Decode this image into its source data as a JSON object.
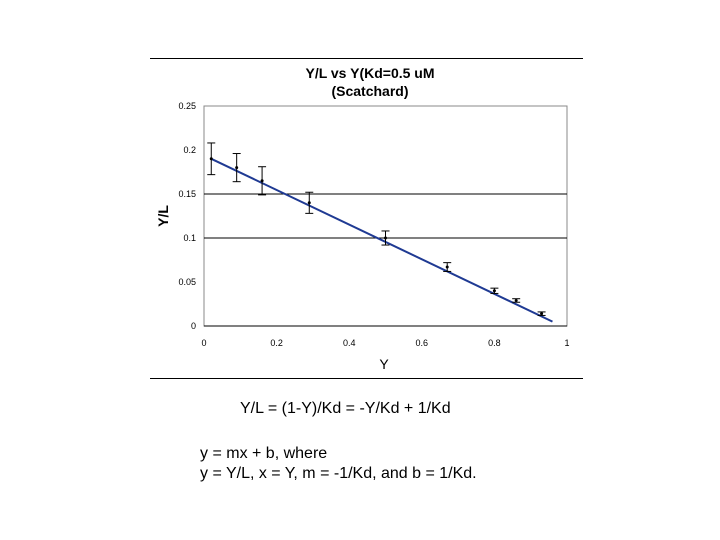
{
  "chart_data": {
    "type": "scatter",
    "title": "Y/L vs Y(Kd=0.5 uM",
    "subtitle": "(Scatchard)",
    "xlabel": "Y",
    "ylabel": "Y/L",
    "xlim": [
      0,
      1
    ],
    "ylim": [
      0,
      0.25
    ],
    "x_ticks": [
      "0",
      "0.2",
      "0.4",
      "0.6",
      "0.8",
      "1"
    ],
    "y_ticks": [
      "0",
      "0.05",
      "0.1",
      "0.15",
      "0.2",
      "0.25"
    ],
    "gridlines_y": [
      0.1,
      0.15
    ],
    "series": [
      {
        "points": [
          {
            "x": 0.02,
            "y": 0.19,
            "err": 0.018
          },
          {
            "x": 0.09,
            "y": 0.18,
            "err": 0.016
          },
          {
            "x": 0.16,
            "y": 0.165,
            "err": 0.016
          },
          {
            "x": 0.29,
            "y": 0.14,
            "err": 0.012
          },
          {
            "x": 0.5,
            "y": 0.1,
            "err": 0.008
          },
          {
            "x": 0.67,
            "y": 0.067,
            "err": 0.005
          },
          {
            "x": 0.8,
            "y": 0.04,
            "err": 0.003
          },
          {
            "x": 0.86,
            "y": 0.029,
            "err": 0.002
          },
          {
            "x": 0.93,
            "y": 0.014,
            "err": 0.002
          }
        ]
      }
    ],
    "fit_line": {
      "x": [
        0.02,
        0.96
      ],
      "y": [
        0.19,
        0.005
      ]
    },
    "colors": {
      "line": "#1f3a93",
      "points": "#000000",
      "gridlines": "#000000"
    }
  },
  "equations": {
    "line1": "Y/L = (1-Y)/Kd = -Y/Kd + 1/Kd",
    "line2": "y = mx + b, where",
    "line3": "y = Y/L, x = Y, m = -1/Kd, and b = 1/Kd."
  }
}
